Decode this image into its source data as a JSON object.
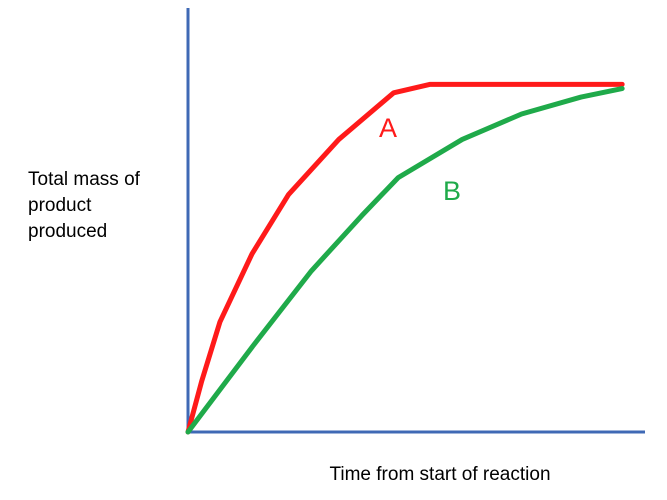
{
  "chart_data": {
    "type": "line",
    "ylabel": [
      "Total mass of",
      "product",
      "produced"
    ],
    "xlabel": "Time from start of reaction",
    "xlim": [
      0,
      100
    ],
    "ylim": [
      0,
      100
    ],
    "series": [
      {
        "name": "A",
        "color": "#ff1a1a",
        "x": [
          0,
          3,
          7,
          14,
          22,
          33,
          45,
          53,
          95
        ],
        "values": [
          0,
          12,
          26,
          42,
          56,
          69,
          80,
          82,
          82
        ]
      },
      {
        "name": "B",
        "color": "#1faa4a",
        "x": [
          0,
          14,
          27,
          38,
          46,
          60,
          73,
          86,
          95
        ],
        "values": [
          0,
          20,
          38,
          51,
          60,
          69,
          75,
          79,
          81
        ]
      }
    ]
  }
}
